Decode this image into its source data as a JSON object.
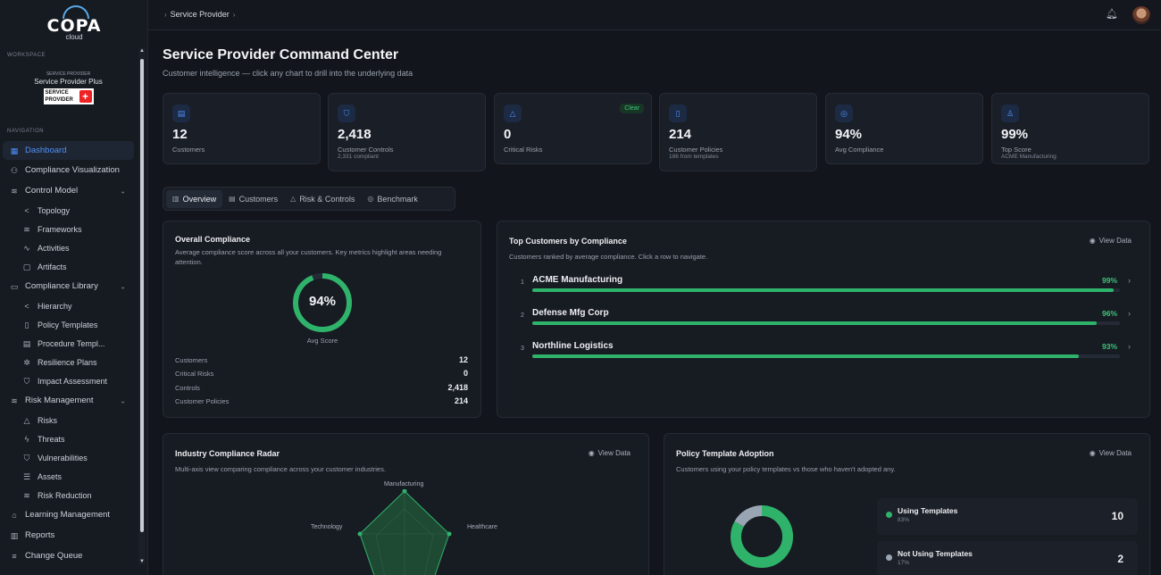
{
  "brand": {
    "logo_text": "COPA",
    "logo_sub": "cloud"
  },
  "sidebar": {
    "workspace_label": "WORKSPACE",
    "org_small": "SERVICE PROVIDER",
    "org_name": "Service Provider Plus",
    "org_badge_line1": "SERVICE",
    "org_badge_line2": "PROVIDER",
    "navigation_label": "NAVIGATION",
    "items": [
      {
        "label": "Dashboard",
        "icon": "grid-icon",
        "glyph": "▦",
        "level": "top",
        "active": true
      },
      {
        "label": "Compliance Visualization",
        "icon": "network-icon",
        "glyph": "⚇",
        "level": "top"
      },
      {
        "label": "Control Model",
        "icon": "layers-icon",
        "glyph": "≋",
        "level": "top",
        "chevron": true
      },
      {
        "label": "Topology",
        "icon": "share-icon",
        "glyph": "<",
        "level": "sub"
      },
      {
        "label": "Frameworks",
        "icon": "layers-icon",
        "glyph": "≋",
        "level": "sub"
      },
      {
        "label": "Activities",
        "icon": "activity-icon",
        "glyph": "∿",
        "level": "sub"
      },
      {
        "label": "Artifacts",
        "icon": "file-icon",
        "glyph": "▢",
        "level": "sub"
      },
      {
        "label": "Compliance Library",
        "icon": "folder-icon",
        "glyph": "▭",
        "level": "top",
        "chevron": true
      },
      {
        "label": "Hierarchy",
        "icon": "share-icon",
        "glyph": "<",
        "level": "sub"
      },
      {
        "label": "Policy Templates",
        "icon": "book-icon",
        "glyph": "▯",
        "level": "sub"
      },
      {
        "label": "Procedure Templ...",
        "icon": "clipboard-icon",
        "glyph": "▤",
        "level": "sub"
      },
      {
        "label": "Resilience Plans",
        "icon": "gear-icon",
        "glyph": "✲",
        "level": "sub"
      },
      {
        "label": "Impact Assessment",
        "icon": "shield-icon",
        "glyph": "⛉",
        "level": "sub"
      },
      {
        "label": "Risk Management",
        "icon": "layers-icon",
        "glyph": "≋",
        "level": "top",
        "chevron": true
      },
      {
        "label": "Risks",
        "icon": "warning-icon",
        "glyph": "△",
        "level": "sub"
      },
      {
        "label": "Threats",
        "icon": "zap-icon",
        "glyph": "ϟ",
        "level": "sub"
      },
      {
        "label": "Vulnerabilities",
        "icon": "shield-icon",
        "glyph": "⛉",
        "level": "sub"
      },
      {
        "label": "Assets",
        "icon": "database-icon",
        "glyph": "☰",
        "level": "sub"
      },
      {
        "label": "Risk Reduction",
        "icon": "layers-icon",
        "glyph": "≋",
        "level": "sub"
      },
      {
        "label": "Learning Management",
        "icon": "graduation-cap-icon",
        "glyph": "⌂",
        "level": "top"
      },
      {
        "label": "Reports",
        "icon": "bar-chart-icon",
        "glyph": "▥",
        "level": "top"
      },
      {
        "label": "Change Queue",
        "icon": "list-icon",
        "glyph": "≡",
        "level": "top"
      }
    ]
  },
  "topbar": {
    "breadcrumb": "Service Provider"
  },
  "page": {
    "title": "Service Provider Command Center",
    "subtitle": "Customer intelligence — click any chart to drill into the underlying data"
  },
  "kpis": [
    {
      "value": "12",
      "label": "Customers",
      "note": "",
      "icon": "building-icon",
      "glyph": "▤"
    },
    {
      "value": "2,418",
      "label": "Customer Controls",
      "note": "2,331 compliant",
      "icon": "shield-icon",
      "glyph": "⛉"
    },
    {
      "value": "0",
      "label": "Critical Risks",
      "note": "",
      "icon": "warning-icon",
      "glyph": "△",
      "badge": "Clear"
    },
    {
      "value": "214",
      "label": "Customer Policies",
      "note": "186 from templates",
      "icon": "file-icon",
      "glyph": "▯"
    },
    {
      "value": "94%",
      "label": "Avg Compliance",
      "note": "",
      "icon": "target-icon",
      "glyph": "◎"
    },
    {
      "value": "99%",
      "label": "Top Score",
      "note": "ACME Manufacturing",
      "icon": "user-check-icon",
      "glyph": "♙"
    }
  ],
  "tabs": [
    {
      "label": "Overview",
      "icon": "bar-chart-icon",
      "glyph": "▥",
      "active": true
    },
    {
      "label": "Customers",
      "icon": "building-icon",
      "glyph": "▤"
    },
    {
      "label": "Risk & Controls",
      "icon": "warning-icon",
      "glyph": "△"
    },
    {
      "label": "Benchmark",
      "icon": "target-icon",
      "glyph": "◎"
    }
  ],
  "overall": {
    "title": "Overall Compliance",
    "subtitle": "Average compliance score across all your customers. Key metrics highlight areas needing attention.",
    "score_label": "94%",
    "score_fraction": 0.94,
    "score_caption": "Avg Score",
    "ring_color": "#2fb36b",
    "stats": [
      {
        "label": "Customers",
        "value": "12"
      },
      {
        "label": "Critical Risks",
        "value": "0"
      },
      {
        "label": "Controls",
        "value": "2,418"
      },
      {
        "label": "Customer Policies",
        "value": "214"
      }
    ]
  },
  "top_customers": {
    "title": "Top Customers by Compliance",
    "subtitle": "Customers ranked by average compliance. Click a row to navigate.",
    "view_data": "View Data",
    "rows": [
      {
        "rank": "1",
        "name": "ACME Manufacturing",
        "pct_label": "99%",
        "pct": 99
      },
      {
        "rank": "2",
        "name": "Defense Mfg Corp",
        "pct_label": "96%",
        "pct": 96
      },
      {
        "rank": "3",
        "name": "Northline Logistics",
        "pct_label": "93%",
        "pct": 93
      }
    ]
  },
  "radar": {
    "title": "Industry Compliance Radar",
    "subtitle": "Multi-axis view comparing compliance across your customer industries.",
    "view_data": "View Data",
    "axes": [
      "Manufacturing",
      "Healthcare",
      "Technology"
    ]
  },
  "adoption": {
    "title": "Policy Template Adoption",
    "subtitle": "Customers using your policy templates vs those who haven't adopted any.",
    "view_data": "View Data",
    "items": [
      {
        "label": "Using Templates",
        "pct_label": "83%",
        "value": "10",
        "fraction": 0.83,
        "color": "#2fb36b"
      },
      {
        "label": "Not Using Templates",
        "pct_label": "17%",
        "value": "2",
        "fraction": 0.17,
        "color": "#9aa5b4"
      }
    ]
  }
}
